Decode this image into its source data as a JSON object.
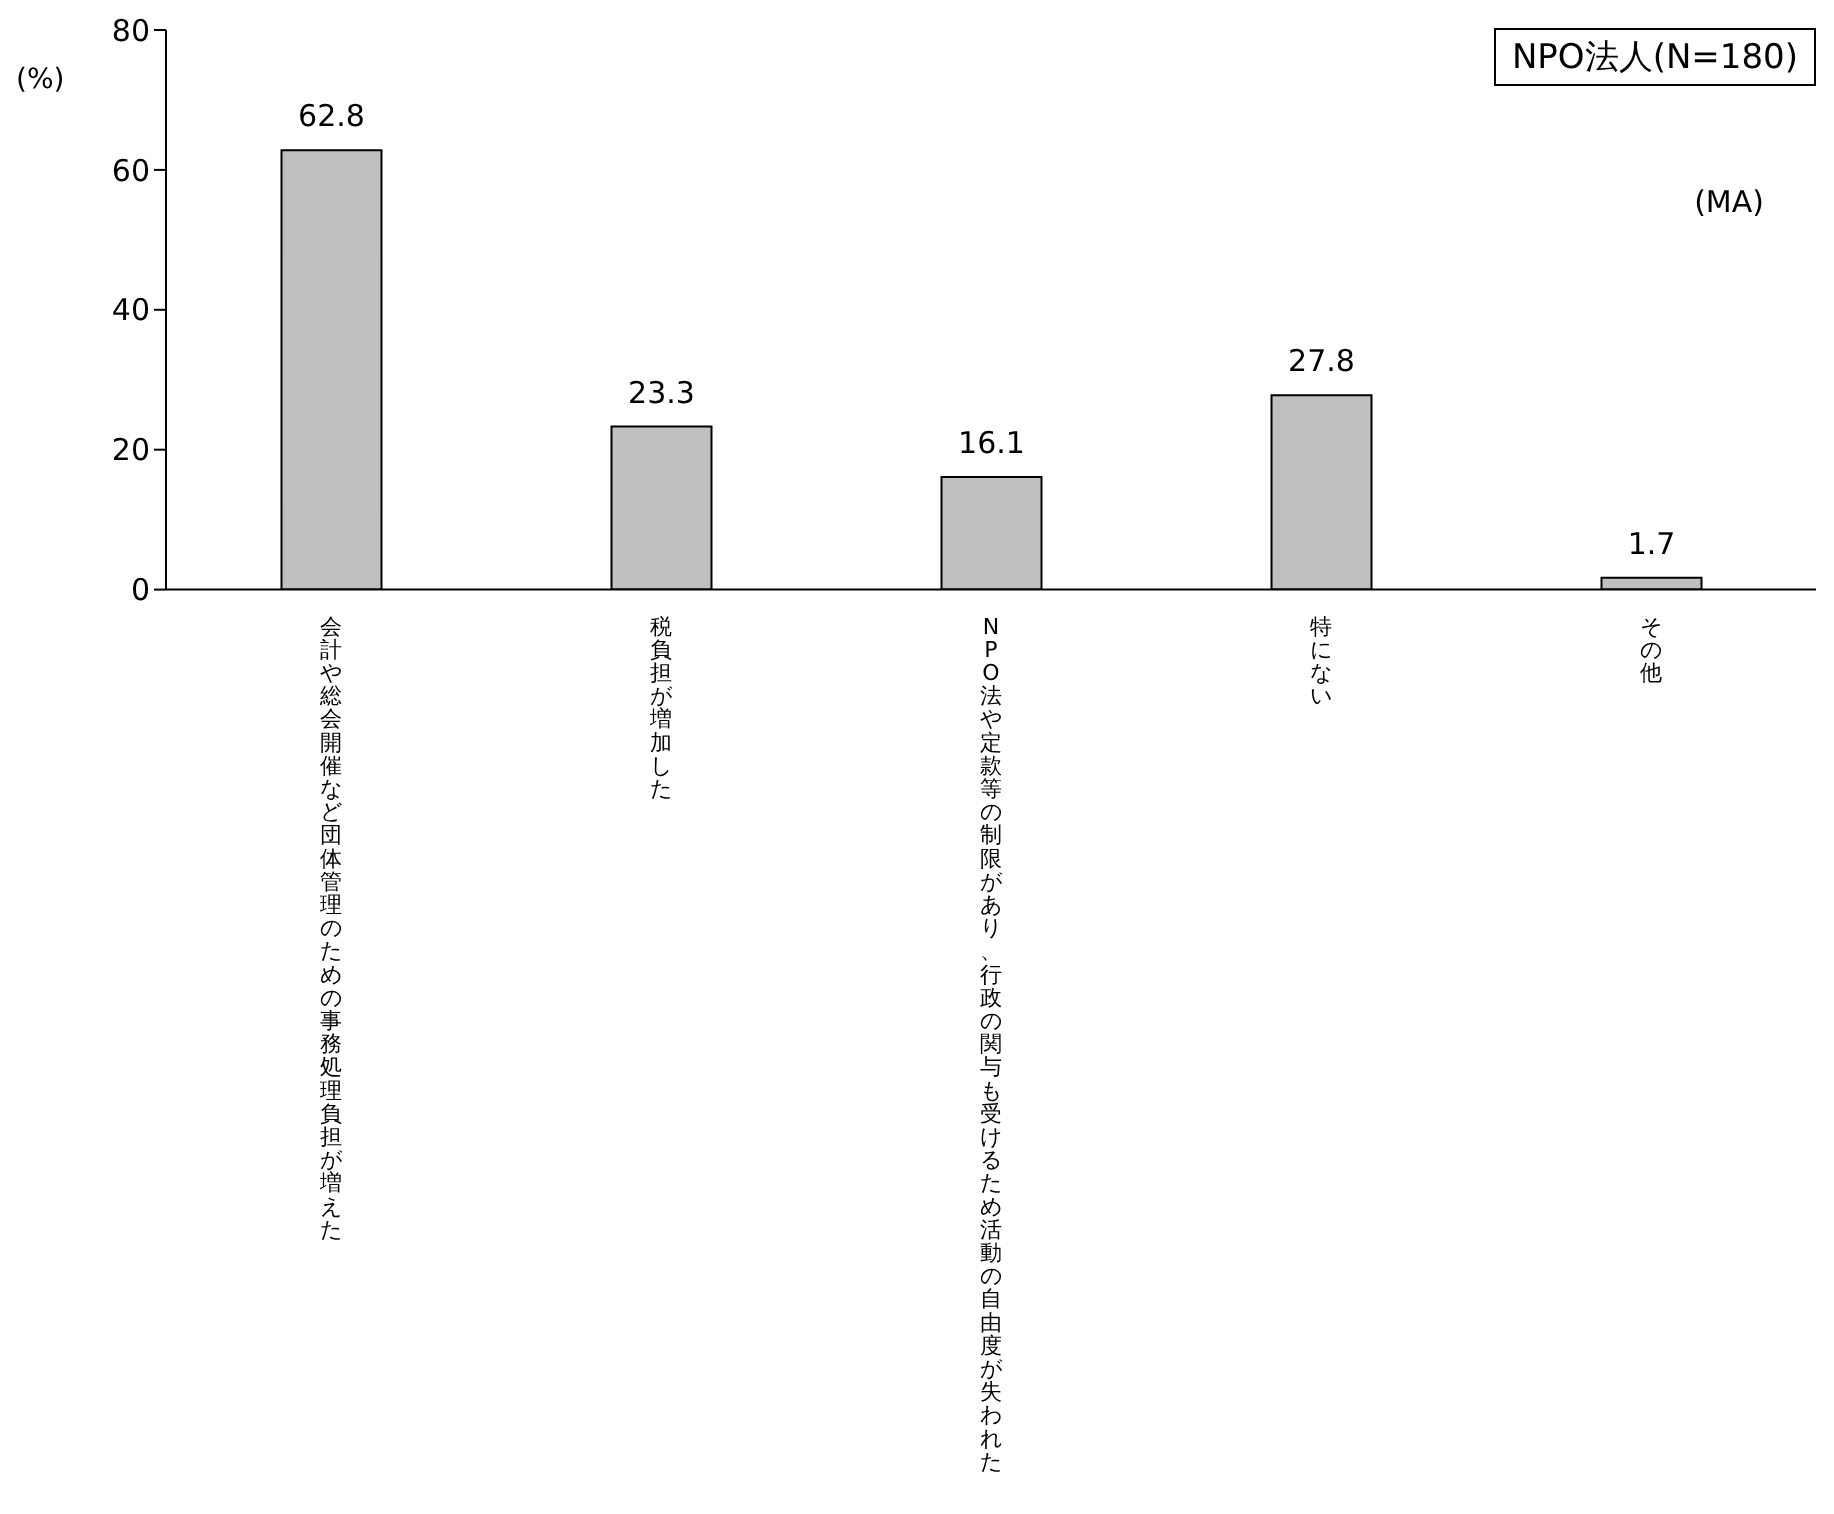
{
  "chart_data": {
    "type": "bar",
    "title": "NPO法人(N=180)",
    "ylabel": "(%)",
    "annotations": [
      "(MA)"
    ],
    "categories": [
      "会計や総会開催など団体管理のための事務処理負担が増えた",
      "税負担が増加した",
      "NPO法や定款等の制限があり、行政の関与も受けるため活動の自由度が失われた",
      "特にない",
      "その他"
    ],
    "values": [
      62.8,
      23.3,
      16.1,
      27.8,
      1.7
    ],
    "color": "#c0c0c0",
    "ylim": [
      0,
      80
    ],
    "yticks": [
      0,
      20,
      40,
      60,
      80
    ],
    "grid": false,
    "data_labels": true
  }
}
